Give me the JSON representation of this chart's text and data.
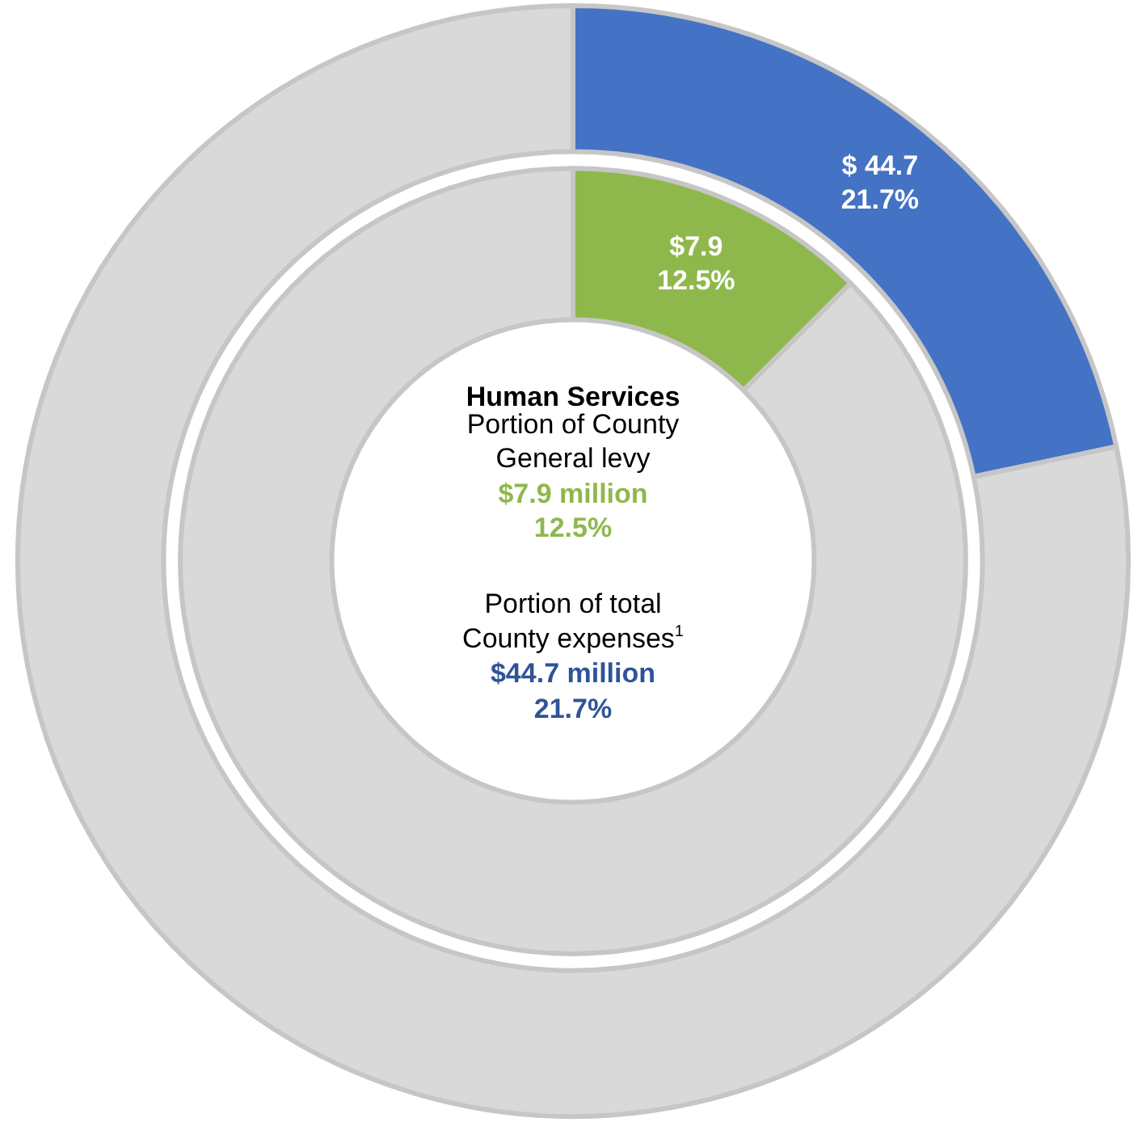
{
  "chart_data": [
    {
      "type": "donut",
      "title": "Human Services",
      "categories": [
        null,
        null
      ],
      "colors": [
        "#4472c4",
        "#d9d9d9"
      ],
      "values": [
        21.7,
        78.3
      ],
      "value_labels": [
        "$ 44.7\n21.7%",
        null
      ],
      "annotations": [
        "Portion of County",
        "General levy",
        "$7.9 million",
        "12.5%",
        "Portion of total",
        "County expenses$^{1}$",
        "$44.7 million",
        "21.7%"
      ],
      "legend": false
    },
    {
      "type": "donut",
      "categories": [
        null,
        null
      ],
      "colors": [
        "#8fb84c",
        "#d9d9d9"
      ],
      "values": [
        12.5,
        87.5
      ],
      "value_labels": [
        "$7.9\n12.5%",
        null
      ],
      "legend": false
    }
  ]
}
